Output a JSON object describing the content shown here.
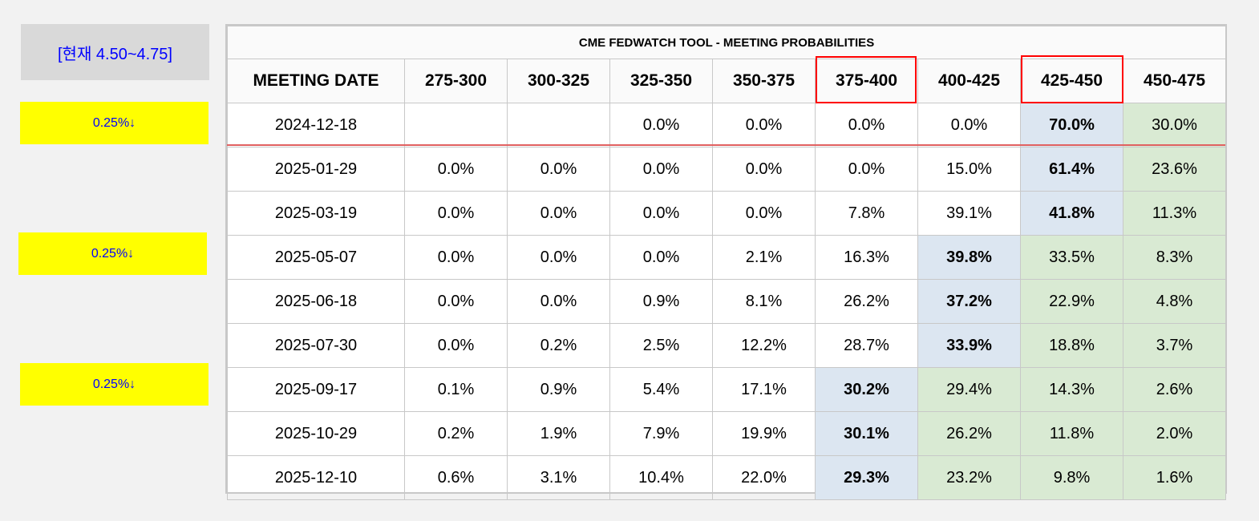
{
  "current_rate_label": "[현재 4.50~4.75]",
  "cut_labels": [
    "0.25%↓",
    "0.25%↓",
    "0.25%↓"
  ],
  "table": {
    "title": "CME FEDWATCH TOOL - MEETING PROBABILITIES",
    "headers": [
      "MEETING DATE",
      "275-300",
      "300-325",
      "325-350",
      "350-375",
      "375-400",
      "400-425",
      "425-450",
      "450-475"
    ],
    "highlighted_headers": [
      "375-400",
      "425-450"
    ],
    "rows": [
      {
        "date": "2024-12-18",
        "values": [
          "",
          "",
          "0.0%",
          "0.0%",
          "0.0%",
          "0.0%",
          "70.0%",
          "30.0%"
        ]
      },
      {
        "date": "2025-01-29",
        "values": [
          "0.0%",
          "0.0%",
          "0.0%",
          "0.0%",
          "0.0%",
          "15.0%",
          "61.4%",
          "23.6%"
        ]
      },
      {
        "date": "2025-03-19",
        "values": [
          "0.0%",
          "0.0%",
          "0.0%",
          "0.0%",
          "7.8%",
          "39.1%",
          "41.8%",
          "11.3%"
        ]
      },
      {
        "date": "2025-05-07",
        "values": [
          "0.0%",
          "0.0%",
          "0.0%",
          "2.1%",
          "16.3%",
          "39.8%",
          "33.5%",
          "8.3%"
        ]
      },
      {
        "date": "2025-06-18",
        "values": [
          "0.0%",
          "0.0%",
          "0.9%",
          "8.1%",
          "26.2%",
          "37.2%",
          "22.9%",
          "4.8%"
        ]
      },
      {
        "date": "2025-07-30",
        "values": [
          "0.0%",
          "0.2%",
          "2.5%",
          "12.2%",
          "28.7%",
          "33.9%",
          "18.8%",
          "3.7%"
        ]
      },
      {
        "date": "2025-09-17",
        "values": [
          "0.1%",
          "0.9%",
          "5.4%",
          "17.1%",
          "30.2%",
          "29.4%",
          "14.3%",
          "2.6%"
        ]
      },
      {
        "date": "2025-10-29",
        "values": [
          "0.2%",
          "1.9%",
          "7.9%",
          "19.9%",
          "30.1%",
          "26.2%",
          "11.8%",
          "2.0%"
        ]
      },
      {
        "date": "2025-12-10",
        "values": [
          "0.6%",
          "3.1%",
          "10.4%",
          "22.0%",
          "29.3%",
          "23.2%",
          "9.8%",
          "1.6%"
        ]
      }
    ]
  },
  "colors": {
    "label_yellow": "#ffff00",
    "label_text_blue": "#0000ff",
    "most_likely_blue": "#dce6f1",
    "higher_rate_green": "#d9ead3",
    "highlight_red": "#ff0000"
  }
}
